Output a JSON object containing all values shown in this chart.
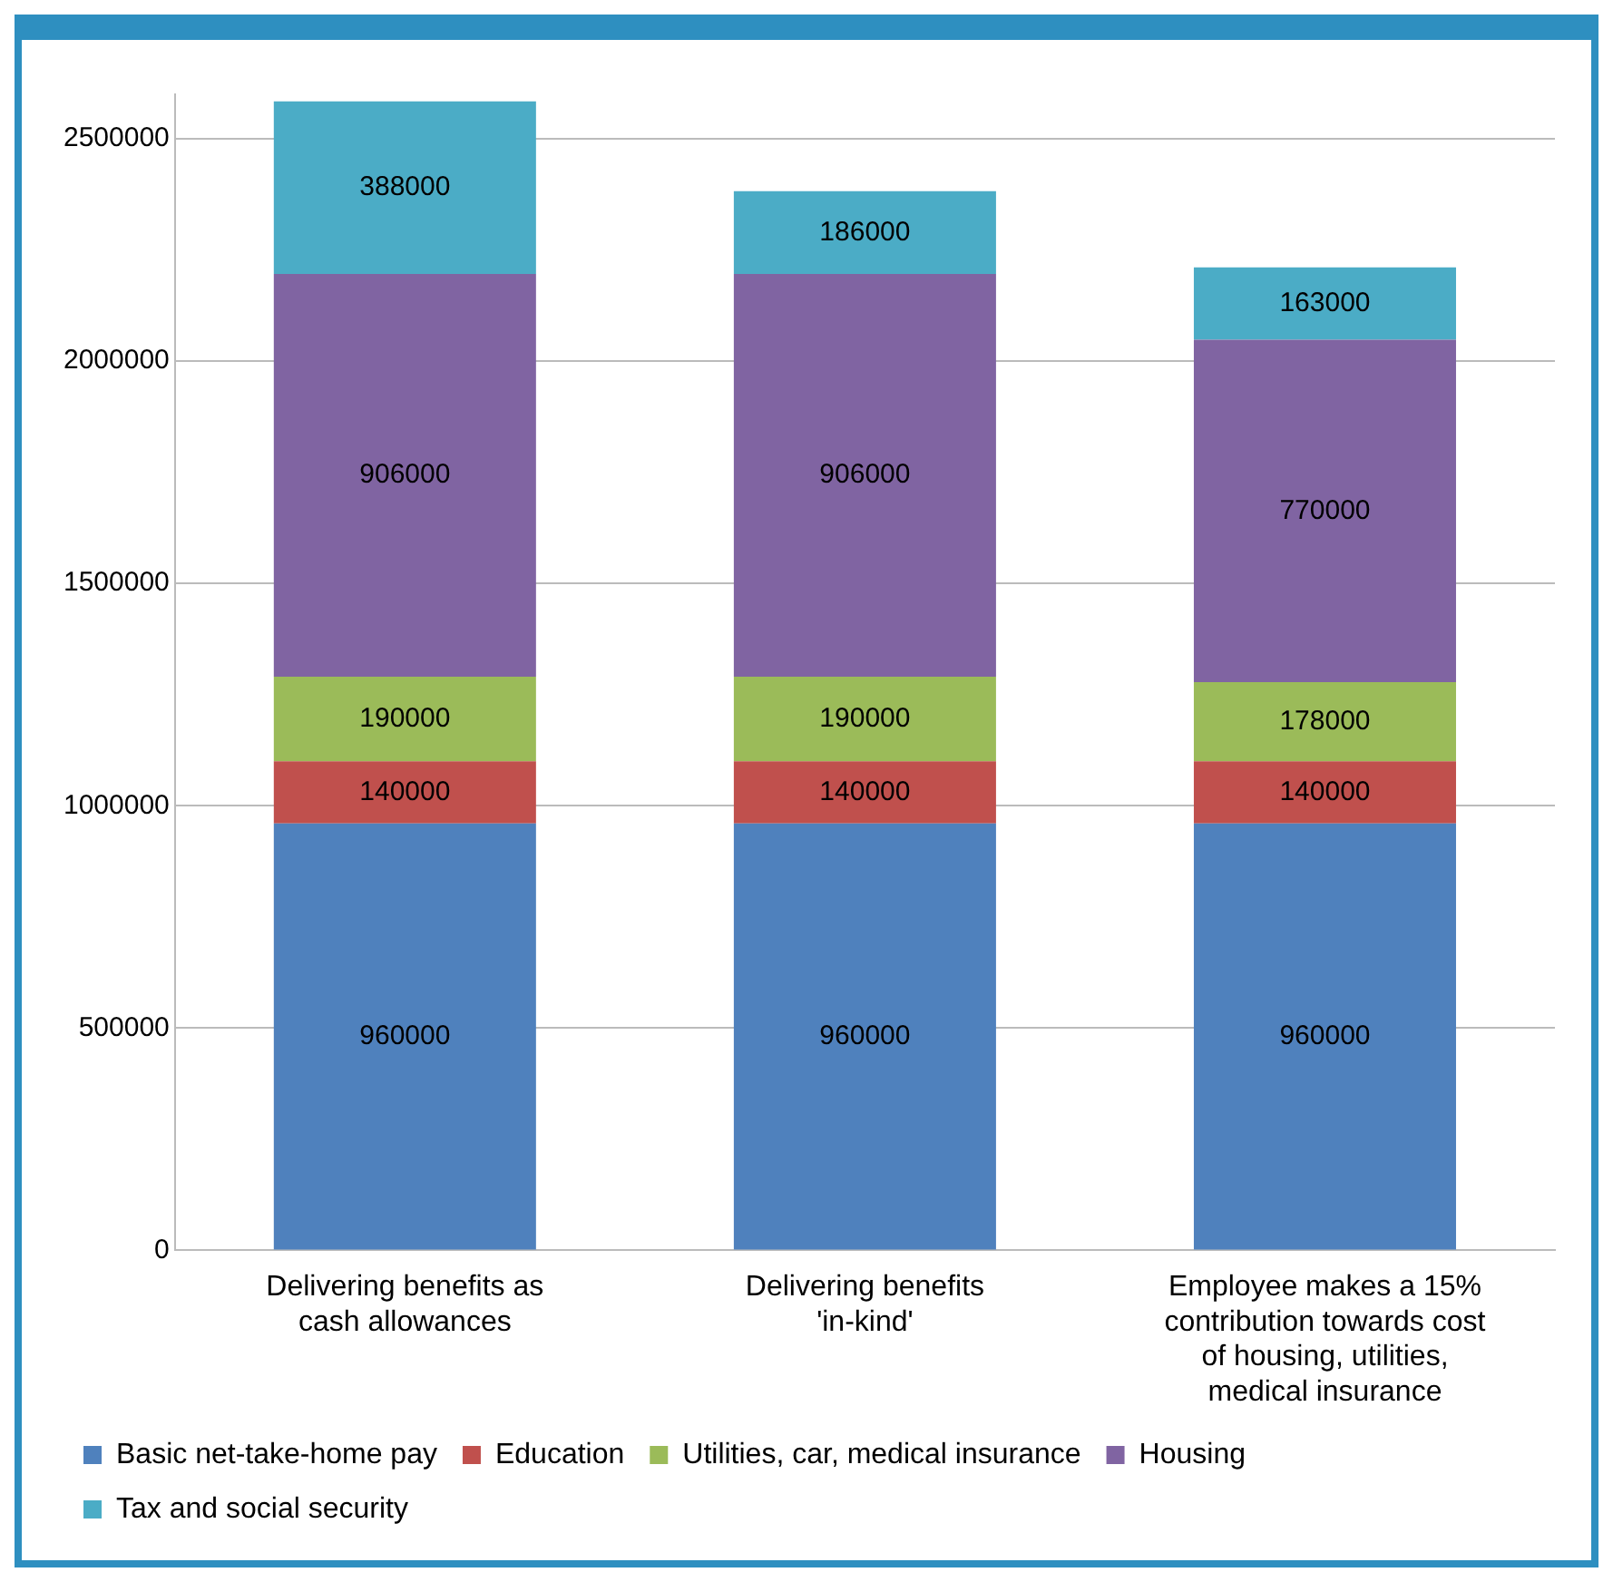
{
  "chart_data": {
    "type": "bar",
    "stacked": true,
    "categories": [
      "Delivering benefits as cash allowances",
      "Delivering benefits 'in-kind'",
      "Employee makes a 15% contribution towards cost of housing, utilities, medical insurance"
    ],
    "series": [
      {
        "name": "Basic net-take-home pay",
        "color": "#4f81bd",
        "values": [
          960000,
          960000,
          960000
        ]
      },
      {
        "name": "Education",
        "color": "#c0504d",
        "values": [
          140000,
          140000,
          140000
        ]
      },
      {
        "name": "Utilities, car, medical insurance",
        "color": "#9bbb59",
        "values": [
          190000,
          190000,
          178000
        ]
      },
      {
        "name": "Housing",
        "color": "#8064a2",
        "values": [
          906000,
          906000,
          770000
        ]
      },
      {
        "name": "Tax and social security",
        "color": "#4bacc6",
        "values": [
          388000,
          186000,
          163000
        ]
      }
    ],
    "ylim": [
      0,
      2600000
    ],
    "yticks": [
      0,
      500000,
      1000000,
      1500000,
      2000000,
      2500000
    ],
    "grid": "y",
    "legend": "bottom",
    "data_labels": true
  }
}
